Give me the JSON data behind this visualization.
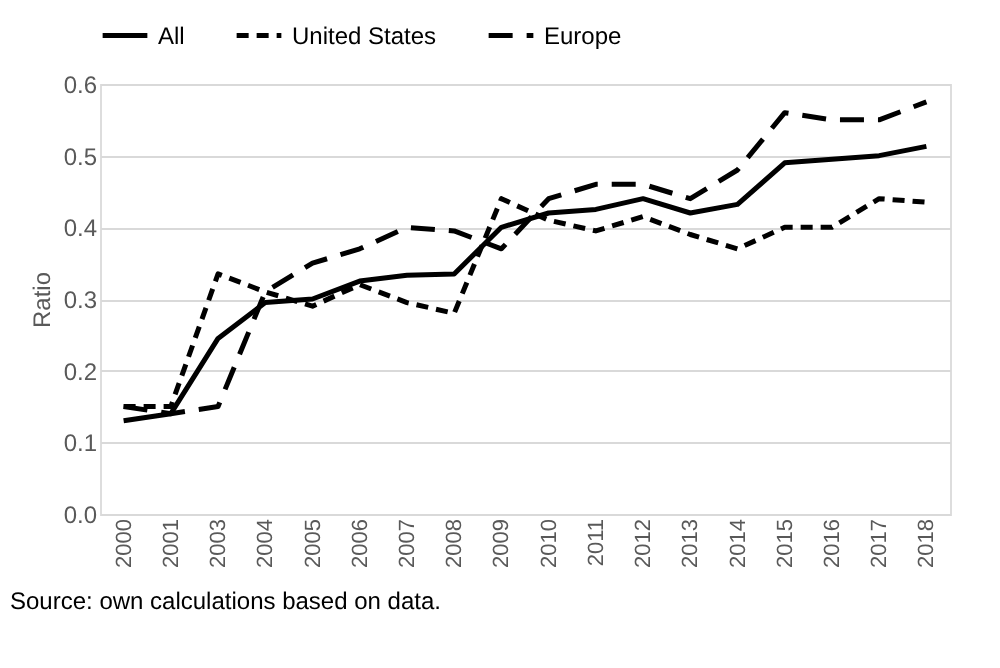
{
  "chart_data": {
    "type": "line",
    "ylabel": "Ratio",
    "categories": [
      "2000",
      "2001",
      "2003",
      "2004",
      "2005",
      "2006",
      "2007",
      "2008",
      "2009",
      "2010",
      "2011",
      "2012",
      "2013",
      "2014",
      "2015",
      "2016",
      "2017",
      "2018"
    ],
    "series": [
      {
        "name": "All",
        "color": "#000000",
        "line_style": "solid",
        "values": [
          0.13,
          0.14,
          0.245,
          0.295,
          0.3,
          0.325,
          0.333,
          0.335,
          0.4,
          0.42,
          0.425,
          0.44,
          0.42,
          0.432,
          0.49,
          0.495,
          0.5,
          0.513
        ]
      },
      {
        "name": "United States",
        "color": "#000000",
        "line_style": "dashed",
        "values": [
          0.15,
          0.15,
          0.335,
          0.31,
          0.29,
          0.32,
          0.295,
          0.28,
          0.44,
          0.41,
          0.395,
          0.415,
          0.39,
          0.37,
          0.4,
          0.4,
          0.44,
          0.435
        ]
      },
      {
        "name": "Europe",
        "color": "#000000",
        "line_style": "dashed",
        "values": [
          0.15,
          0.14,
          0.15,
          0.31,
          0.35,
          0.37,
          0.4,
          0.395,
          0.37,
          0.44,
          0.46,
          0.46,
          0.44,
          0.48,
          0.56,
          0.55,
          0.55,
          0.575
        ]
      }
    ],
    "ylim": [
      0,
      0.6
    ],
    "yticks": [
      {
        "value": 0,
        "label": "0.0"
      },
      {
        "value": 0.1,
        "label": "0.1"
      },
      {
        "value": 0.2,
        "label": "0.2"
      },
      {
        "value": 0.3,
        "label": "0.3"
      },
      {
        "value": 0.4,
        "label": "0.4"
      },
      {
        "value": 0.5,
        "label": "0.5"
      },
      {
        "value": 0.6,
        "label": "0.6"
      }
    ],
    "grid": "y",
    "legend": "top",
    "marker": "none",
    "annotations": [
      "Source: own calculations based on data."
    ]
  }
}
